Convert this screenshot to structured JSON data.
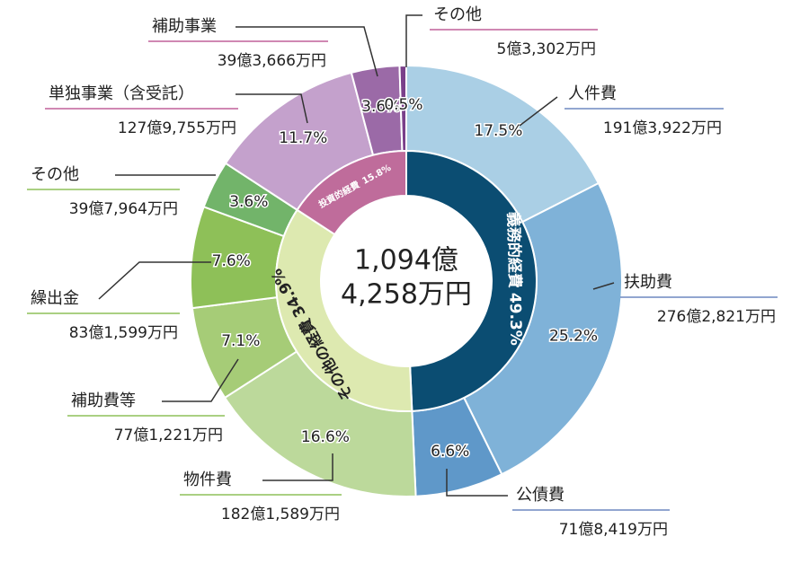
{
  "chart_data": {
    "type": "donut",
    "center_label": [
      "1,094億",
      "4,258万円"
    ],
    "series": [
      {
        "categories": [
          "人件費",
          "扶助費",
          "公債費",
          "物件費",
          "補助費等",
          "繰出金",
          "その他",
          "単独事業（含受託）",
          "補助事業",
          "その他"
        ],
        "values": [
          17.5,
          25.2,
          6.6,
          16.6,
          7.1,
          7.6,
          3.6,
          11.7,
          3.6,
          0.5
        ],
        "value_labels": [
          "17.5%",
          "25.2%",
          "6.6%",
          "16.6%",
          "7.1%",
          "7.6%",
          "3.6%",
          "11.7%",
          "3.6%",
          "0.5%"
        ],
        "amount_labels": [
          "191億3,922万円",
          "276億2,821万円",
          "71億8,419万円",
          "182億1,589万円",
          "77億1,221万円",
          "83億1,599万円",
          "39億7,964万円",
          "127億9,755万円",
          "39億3,666万円",
          "5億3,302万円"
        ],
        "colors": [
          "#aacfe5",
          "#7fb2d8",
          "#5f98c9",
          "#bcd99b",
          "#a6cc77",
          "#8ec058",
          "#72b46a",
          "#c4a1cc",
          "#9b6aa7",
          "#7a3f8a"
        ]
      },
      {
        "categories": [
          "義務的経費",
          "その他の経費",
          "投資的経費"
        ],
        "values": [
          49.3,
          34.9,
          15.8
        ],
        "value_labels": [
          "49.3%",
          "34.9%",
          "15.8%"
        ],
        "colors": [
          "#0b4d72",
          "#dde9b0",
          "#bf6c9b"
        ]
      }
    ]
  }
}
